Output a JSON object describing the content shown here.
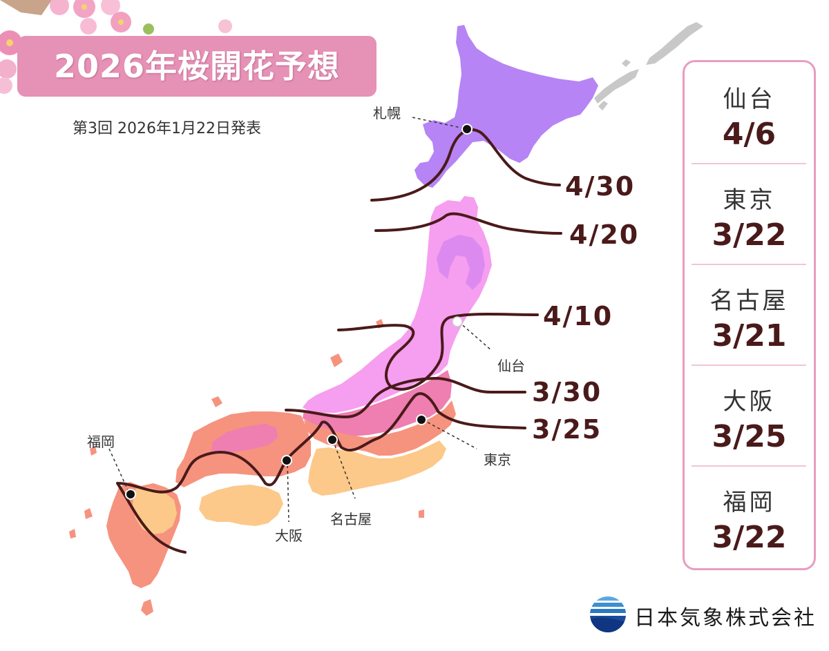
{
  "header": {
    "title": "2026年桜開花予想",
    "subtitle": "第3回  2026年1月22日発表"
  },
  "isolines": [
    {
      "label": "4/30"
    },
    {
      "label": "4/20"
    },
    {
      "label": "4/10"
    },
    {
      "label": "3/30"
    },
    {
      "label": "3/25"
    }
  ],
  "cities": [
    {
      "name": "札幌"
    },
    {
      "name": "仙台"
    },
    {
      "name": "東京"
    },
    {
      "name": "名古屋"
    },
    {
      "name": "大阪"
    },
    {
      "name": "福岡"
    }
  ],
  "legend": {
    "items": [
      {
        "city": "仙台",
        "date": "4/6"
      },
      {
        "city": "東京",
        "date": "3/22"
      },
      {
        "city": "名古屋",
        "date": "3/21"
      },
      {
        "city": "大阪",
        "date": "3/25"
      },
      {
        "city": "福岡",
        "date": "3/22"
      }
    ]
  },
  "company": {
    "name": "日本気象株式会社",
    "logo_icon": "globe-stripes-logo"
  },
  "colors": {
    "purple_zone": "#b684f4",
    "lilac_zone": "#dd8af0",
    "pink_zone": "#f69ef0",
    "deep_pink_zone": "#ee7fb0",
    "salmon_zone": "#f5937f",
    "peach_zone": "#fcc98a",
    "isoline": "#4a1a1a",
    "title_bg": "#e691b6",
    "legend_border": "#e89cc0",
    "islands_gray": "#c8c8c8"
  }
}
